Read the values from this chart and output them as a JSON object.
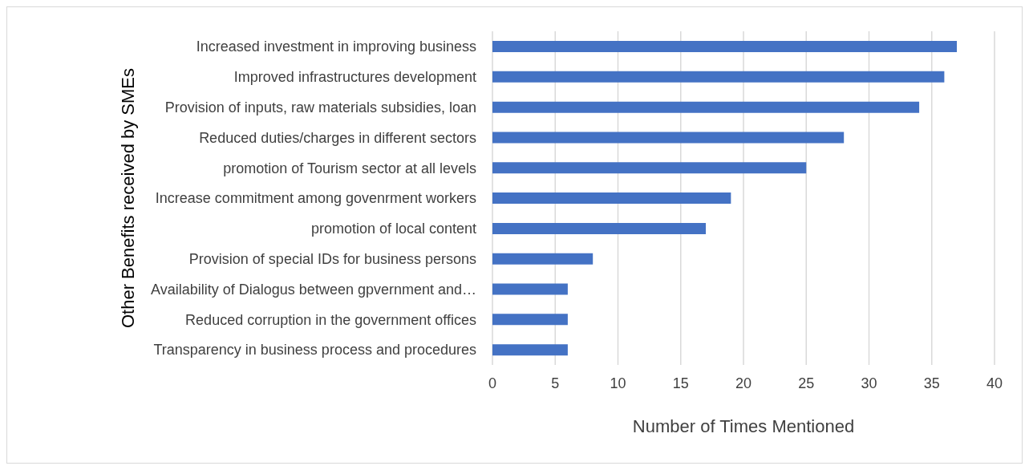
{
  "chart_data": {
    "type": "bar",
    "orientation": "horizontal",
    "ylabel": "Other Benefits received by SMEs",
    "xlabel": "Number of Times Mentioned",
    "categories": [
      "Increased investment in improving business",
      "Improved infrastructures development",
      "Provision of inputs, raw materials subsidies, loan",
      "Reduced duties/charges in different sectors",
      "promotion of Tourism sector at all levels",
      "Increase commitment among govenrment workers",
      "promotion of local content",
      "Provision of special IDs for business persons",
      "Availability of Dialogus between gpvernment and…",
      "Reduced corruption in the government offices",
      "Transparency in business process and procedures"
    ],
    "values": [
      37,
      36,
      34,
      28,
      25,
      19,
      17,
      8,
      6,
      6,
      6
    ],
    "color": "#4472c4",
    "xlim": [
      0,
      40
    ],
    "xticks": [
      0,
      5,
      10,
      15,
      20,
      25,
      30,
      35,
      40
    ],
    "grid": "x"
  }
}
